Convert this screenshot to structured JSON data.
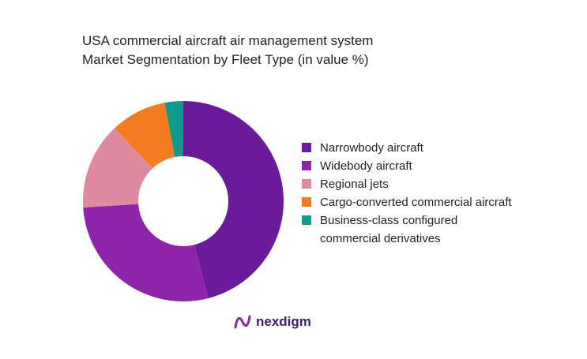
{
  "chart_data": {
    "type": "donut",
    "title": "USA commercial aircraft air management system Market Segmentation by Fleet Type (in value %)",
    "categories": [
      "Narrowbody aircraft",
      "Widebody aircraft",
      "Regional jets",
      "Cargo-converted commercial aircraft",
      "Business-class configured commercial derivatives"
    ],
    "values": [
      46,
      28,
      14,
      9,
      3
    ],
    "colors": [
      "#6a1b9a",
      "#8e24aa",
      "#e08aa0",
      "#f47c20",
      "#129b8a"
    ],
    "legend": "right"
  },
  "brand": "nexdigm"
}
